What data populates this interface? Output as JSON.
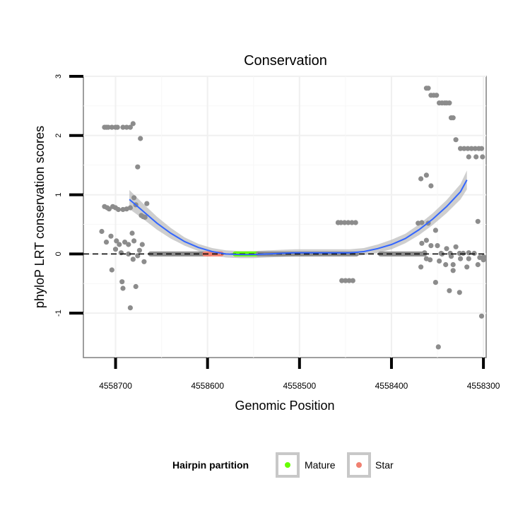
{
  "chart_data": {
    "type": "scatter",
    "title": "Conservation",
    "xlabel": "Genomic Position",
    "ylabel": "phyloP LRT conservation scores",
    "x_reversed": true,
    "xlim": [
      4558735,
      4558297
    ],
    "ylim": [
      -1.75,
      3.0
    ],
    "x_ticks": [
      4558700,
      4558600,
      4558500,
      4558400,
      4558300
    ],
    "x_tick_labels": [
      "4558700",
      "4558600",
      "4558500",
      "4558400",
      "4558300"
    ],
    "y_ticks": [
      -1,
      0,
      1,
      2,
      3
    ],
    "y_tick_labels": [
      "-1",
      "0",
      "1",
      "2",
      "3"
    ],
    "reference_line": {
      "y": 0,
      "style": "dashed",
      "color": "#000000"
    },
    "legend": {
      "title": "Hairpin partition",
      "position": "bottom",
      "entries": [
        {
          "label": "Mature",
          "color": "#66ff00"
        },
        {
          "label": "Star",
          "color": "#f08070"
        }
      ]
    },
    "colors": {
      "points": "#8c8c8c",
      "smooth": "#3366ff",
      "band": "#bdbdbd",
      "mature": "#66ff00",
      "star": "#f08070"
    },
    "flat_segments": [
      {
        "x_start": 4558662,
        "x_end": 4558597,
        "y": 0,
        "color": "#8c8c8c"
      },
      {
        "x_start": 4558603,
        "x_end": 4558585,
        "y": 0,
        "color": "#f08070"
      },
      {
        "x_start": 4558570,
        "x_end": 4558545,
        "y": 0,
        "color": "#66ff00"
      },
      {
        "x_start": 4558545,
        "x_end": 4558438,
        "y": 0,
        "color": "#8c8c8c"
      },
      {
        "x_start": 4558412,
        "x_end": 4558364,
        "y": 0,
        "color": "#8c8c8c"
      }
    ],
    "series": [
      {
        "name": "conservation",
        "x": [
          4558712,
          4558710,
          4558708,
          4558704,
          4558700,
          4558698,
          4558692,
          4558688,
          4558684,
          4558681,
          4558676,
          4558673,
          4558712,
          4558709,
          4558707,
          4558703,
          4558700,
          4558697,
          4558692,
          4558688,
          4558684,
          4558680,
          4558678,
          4558672,
          4558670,
          4558668,
          4558715,
          4558710,
          4558705,
          4558699,
          4558696,
          4558690,
          4558686,
          4558682,
          4558680,
          4558674,
          4558671,
          4558669,
          4558666,
          4558700,
          4558694,
          4558686,
          4558681,
          4558676,
          4558704,
          4558693,
          4558684,
          4558678,
          4558692,
          4558458,
          4558458,
          4558455,
          4558451,
          4558447,
          4558443,
          4558439,
          4558454,
          4558450,
          4558446,
          4558442,
          4558362,
          4558360,
          4558357,
          4558354,
          4558351,
          4558348,
          4558345,
          4558342,
          4558340,
          4558337,
          4558335,
          4558333,
          4558325,
          4558321,
          4558317,
          4558313,
          4558309,
          4558305,
          4558302,
          4558330,
          4558316,
          4558308,
          4558301,
          4558371,
          4558367,
          4558360,
          4558368,
          4558362,
          4558357,
          4558352,
          4558367,
          4558362,
          4558357,
          4558350,
          4558346,
          4558340,
          4558336,
          4558330,
          4558326,
          4558322,
          4558316,
          4558310,
          4558306,
          4558364,
          4558345,
          4558335,
          4558325,
          4558304,
          4558300,
          4558368,
          4558362,
          4558352,
          4558348,
          4558341,
          4558333,
          4558326,
          4558318,
          4558306,
          4558300,
          4558358,
          4558349,
          4558337,
          4558333,
          4558316,
          4558302
        ],
        "y": [
          2.14,
          2.14,
          2.14,
          2.14,
          2.14,
          2.14,
          2.14,
          2.14,
          2.14,
          2.2,
          1.47,
          1.95,
          0.8,
          0.78,
          0.76,
          0.8,
          0.78,
          0.75,
          0.75,
          0.76,
          0.78,
          0.95,
          0.83,
          0.65,
          0.63,
          0.62,
          0.38,
          0.2,
          0.3,
          0.22,
          0.16,
          0.2,
          0.16,
          0.35,
          0.22,
          0.06,
          0.16,
          -0.13,
          0.85,
          0.08,
          0.02,
          0.0,
          -0.09,
          -0.03,
          -0.27,
          -0.47,
          -0.91,
          -0.55,
          -0.58,
          0.53,
          0.53,
          0.53,
          0.53,
          0.53,
          0.53,
          0.53,
          -0.45,
          -0.45,
          -0.45,
          -0.45,
          2.8,
          2.8,
          2.68,
          2.68,
          2.68,
          2.55,
          2.55,
          2.55,
          2.55,
          2.55,
          2.3,
          2.3,
          1.78,
          1.78,
          1.78,
          1.78,
          1.78,
          1.78,
          1.78,
          1.93,
          1.64,
          1.64,
          1.64,
          0.52,
          0.53,
          0.52,
          1.27,
          1.33,
          1.15,
          0.4,
          0.18,
          0.23,
          0.14,
          0.14,
          0.01,
          0.09,
          0.01,
          0.12,
          0.01,
          0.01,
          0.02,
          0.01,
          0.55,
          0.02,
          0.0,
          -0.04,
          -0.08,
          -0.06,
          -0.1,
          -0.22,
          -0.08,
          -0.48,
          -0.12,
          -0.18,
          -0.28,
          -0.65,
          -0.22,
          -0.18,
          -0.05,
          -0.1,
          -1.57,
          -0.62,
          -0.18,
          -0.08,
          -1.05
        ]
      }
    ],
    "smooth": {
      "x": [
        4558685,
        4558670,
        4558655,
        4558640,
        4558625,
        4558610,
        4558595,
        4558580,
        4558565,
        4558550,
        4558535,
        4558520,
        4558505,
        4558490,
        4558475,
        4558460,
        4558445,
        4558430,
        4558415,
        4558400,
        4558385,
        4558370,
        4558355,
        4558340,
        4558325,
        4558318
      ],
      "y": [
        0.92,
        0.72,
        0.52,
        0.35,
        0.21,
        0.11,
        0.04,
        0.0,
        -0.01,
        -0.01,
        0.0,
        0.01,
        0.02,
        0.02,
        0.02,
        0.02,
        0.02,
        0.04,
        0.09,
        0.16,
        0.26,
        0.41,
        0.59,
        0.8,
        1.05,
        1.25
      ],
      "band": [
        0.16,
        0.13,
        0.11,
        0.09,
        0.07,
        0.06,
        0.06,
        0.06,
        0.06,
        0.06,
        0.06,
        0.06,
        0.06,
        0.06,
        0.06,
        0.06,
        0.06,
        0.06,
        0.07,
        0.08,
        0.08,
        0.09,
        0.1,
        0.11,
        0.13,
        0.16
      ]
    }
  }
}
